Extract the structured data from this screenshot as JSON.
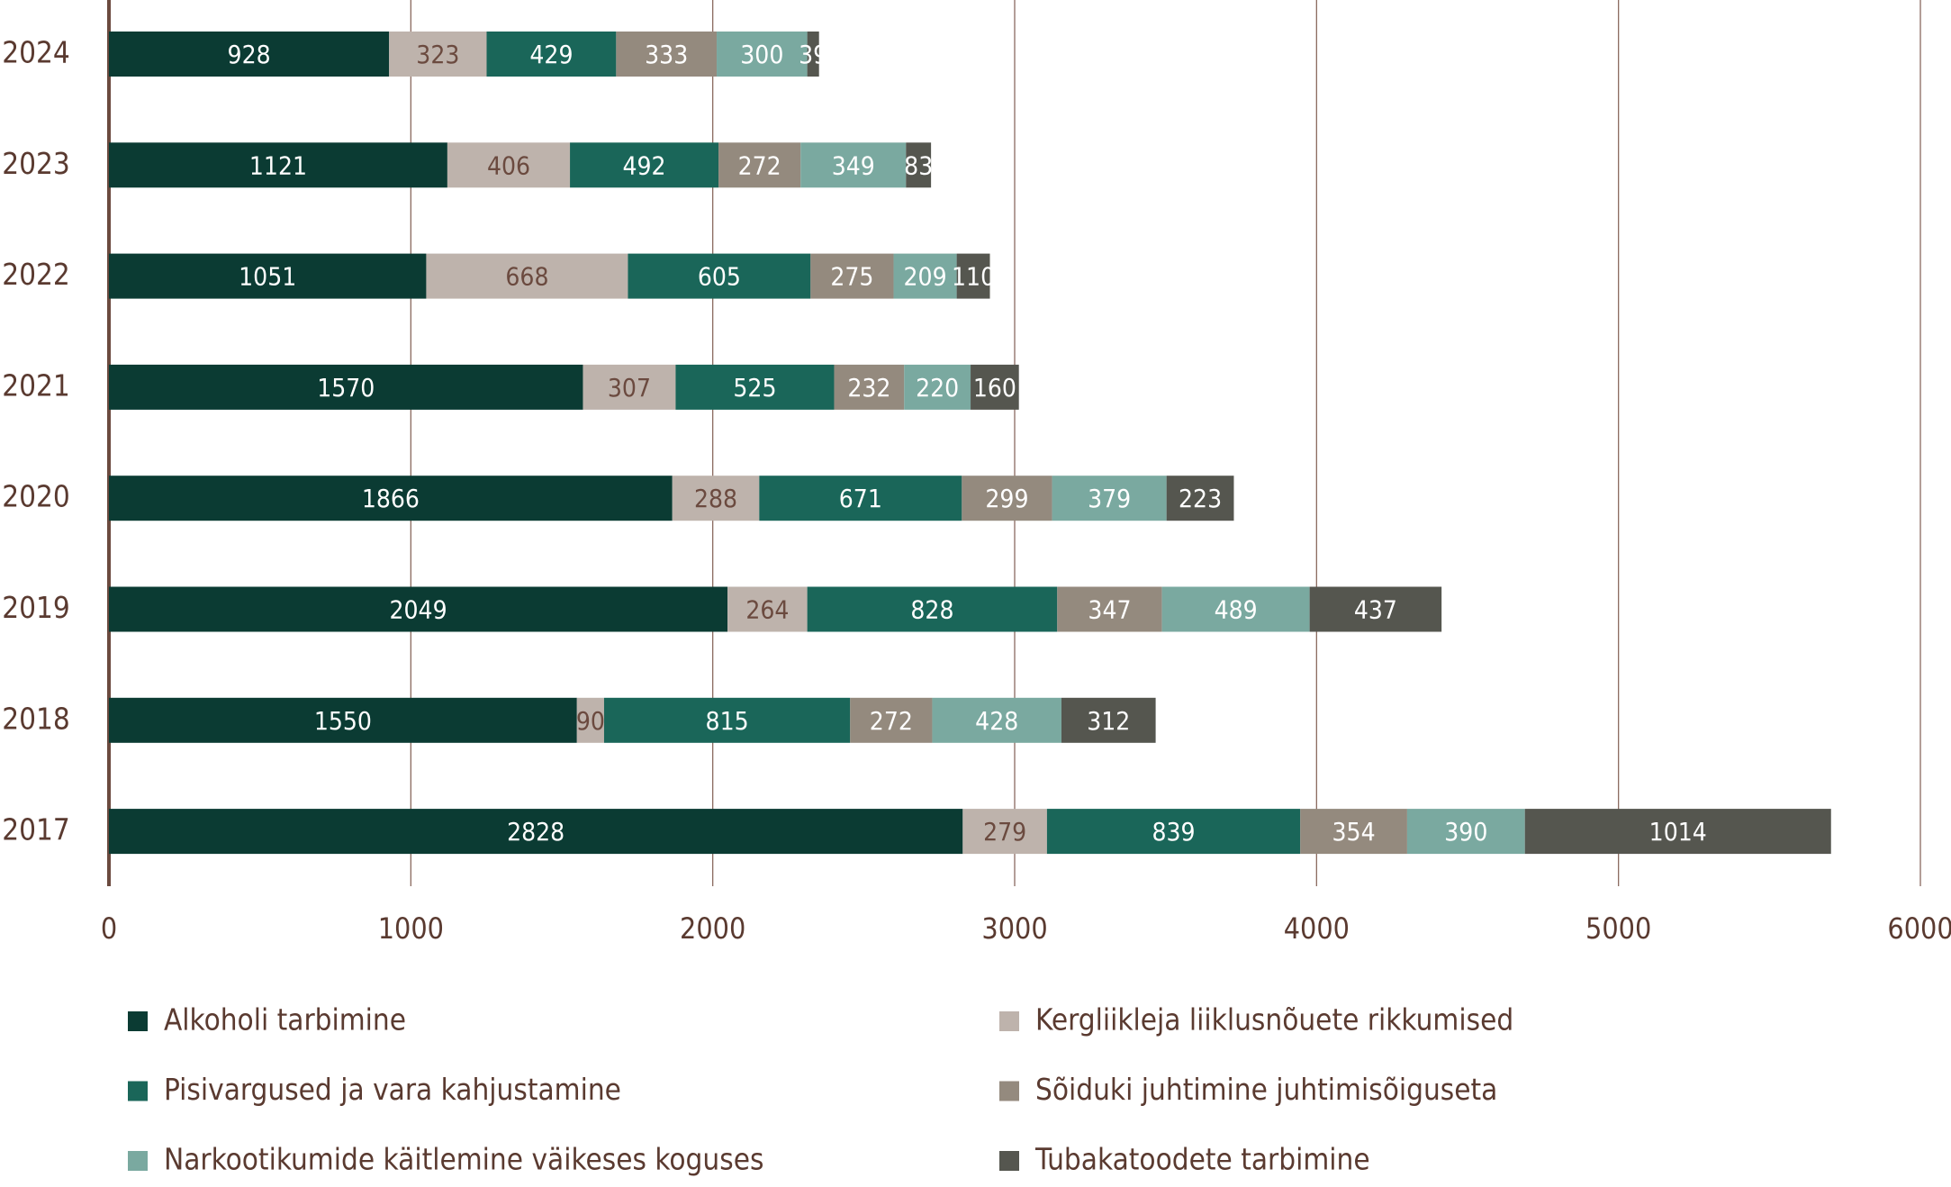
{
  "chart_data": {
    "type": "stacked-bar-horizontal",
    "categories": [
      "2024",
      "2023",
      "2022",
      "2021",
      "2020",
      "2019",
      "2018",
      "2017"
    ],
    "series": [
      {
        "name": "Alkoholi tarbimine",
        "color": "#0b3b33",
        "values": [
          928,
          1121,
          1051,
          1570,
          1866,
          2049,
          1550,
          2828
        ]
      },
      {
        "name": "Kergliikleja liiklusnõuete rikkumised",
        "color": "#beb3ac",
        "values": [
          323,
          406,
          668,
          307,
          288,
          264,
          90,
          279
        ]
      },
      {
        "name": "Pisivargused ja vara kahjustamine",
        "color": "#1a6659",
        "values": [
          429,
          492,
          605,
          525,
          671,
          828,
          815,
          839
        ]
      },
      {
        "name": "Sõiduki juhtimine juhtimisõiguseta",
        "color": "#948a7e",
        "values": [
          333,
          272,
          275,
          232,
          299,
          347,
          272,
          354
        ]
      },
      {
        "name": "Narkootikumide käitlemine väikeses koguses",
        "color": "#7aa9a0",
        "values": [
          300,
          349,
          209,
          220,
          379,
          489,
          428,
          390
        ]
      },
      {
        "name": "Tubakatoodete tarbimine",
        "color": "#55564f",
        "values": [
          39,
          83,
          110,
          160,
          223,
          437,
          312,
          1014
        ]
      }
    ],
    "xlim": [
      0,
      6000
    ],
    "xticks": [
      0,
      1000,
      2000,
      3000,
      4000,
      5000,
      6000
    ],
    "grid": true
  }
}
